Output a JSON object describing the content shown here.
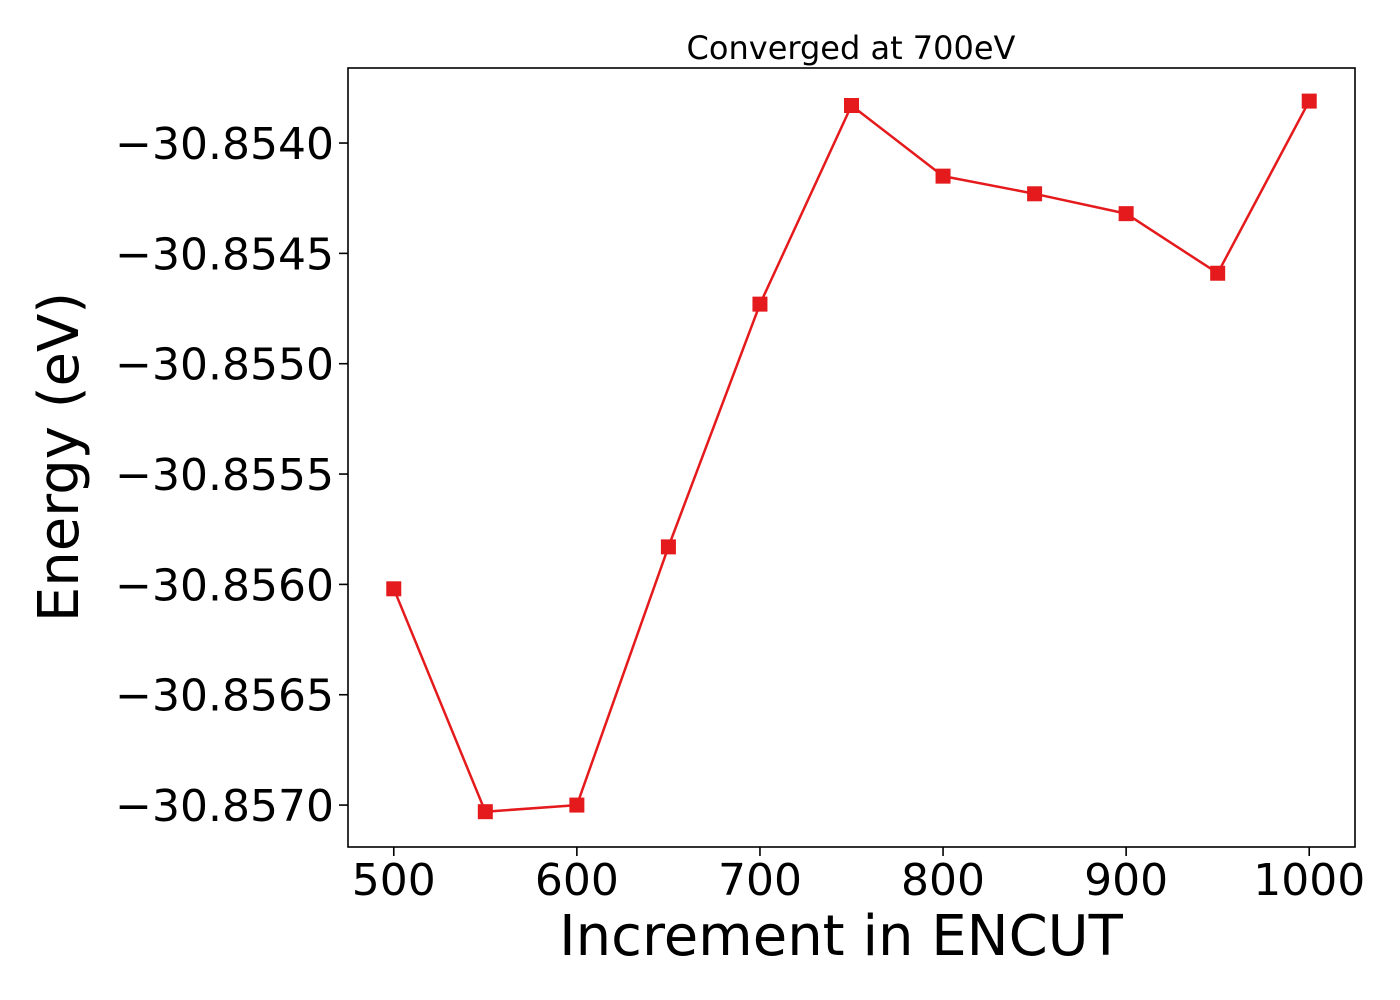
{
  "chart_data": {
    "type": "line",
    "title": "Converged at 700eV",
    "xlabel": "Increment in ENCUT",
    "ylabel": "Energy (eV)",
    "x": [
      500,
      550,
      600,
      650,
      700,
      750,
      800,
      850,
      900,
      950,
      1000
    ],
    "series": [
      {
        "values": [
          -30.85602,
          -30.85703,
          -30.857,
          -30.85583,
          -30.85473,
          -30.85383,
          -30.85415,
          -30.85423,
          -30.85432,
          -30.85459,
          -30.85381
        ],
        "color": "#e41a1c",
        "marker": "square"
      }
    ],
    "xlim": [
      475,
      1025
    ],
    "ylim": [
      -30.85719,
      -30.85366
    ],
    "xticks": [
      500,
      600,
      700,
      800,
      900,
      1000
    ],
    "xtick_labels": [
      "500",
      "600",
      "700",
      "800",
      "900",
      "1000"
    ],
    "yticks": [
      -30.854,
      -30.8545,
      -30.855,
      -30.8555,
      -30.856,
      -30.8565,
      -30.857
    ],
    "ytick_labels": [
      "−30.8540",
      "−30.8545",
      "−30.8550",
      "−30.8555",
      "−30.8560",
      "−30.8565",
      "−30.8570"
    ],
    "grid": false,
    "legend": "none"
  }
}
